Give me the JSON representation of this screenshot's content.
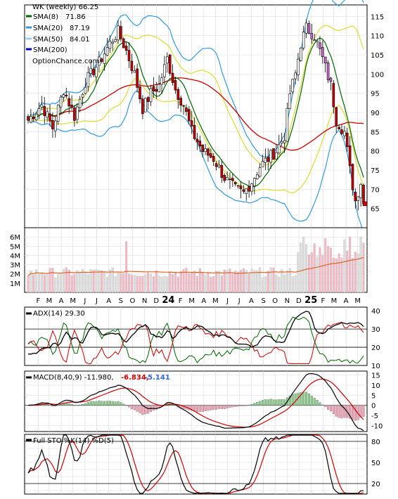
{
  "chart_data": [
    {
      "type": "candlestick",
      "title": "WK (weekly) 66.25",
      "watermark": "OptionChance.com",
      "legend_placement": "top-left",
      "ylim": [
        60,
        118
      ],
      "yticks": [
        65,
        70,
        75,
        80,
        85,
        90,
        95,
        100,
        105,
        110,
        115
      ],
      "x_start": "2023-01-06",
      "x_end": "2025-05-16",
      "month_labels": [
        {
          "date": "2023-02-01",
          "label": "F"
        },
        {
          "date": "2023-03-01",
          "label": "M"
        },
        {
          "date": "2023-04-01",
          "label": "A"
        },
        {
          "date": "2023-05-01",
          "label": "M"
        },
        {
          "date": "2023-06-01",
          "label": "J"
        },
        {
          "date": "2023-07-01",
          "label": "J"
        },
        {
          "date": "2023-08-01",
          "label": "A"
        },
        {
          "date": "2023-09-01",
          "label": "S"
        },
        {
          "date": "2023-10-01",
          "label": "O"
        },
        {
          "date": "2023-11-01",
          "label": "N"
        },
        {
          "date": "2023-12-01",
          "label": "D"
        },
        {
          "date": "2024-01-01",
          "label": "24",
          "bold": true
        },
        {
          "date": "2024-02-01",
          "label": "F"
        },
        {
          "date": "2024-03-01",
          "label": "M"
        },
        {
          "date": "2024-04-01",
          "label": "A"
        },
        {
          "date": "2024-05-01",
          "label": "M"
        },
        {
          "date": "2024-06-01",
          "label": "J"
        },
        {
          "date": "2024-07-01",
          "label": "J"
        },
        {
          "date": "2024-08-01",
          "label": "A"
        },
        {
          "date": "2024-09-01",
          "label": "S"
        },
        {
          "date": "2024-10-01",
          "label": "O"
        },
        {
          "date": "2024-11-01",
          "label": "N"
        },
        {
          "date": "2024-12-01",
          "label": "D"
        },
        {
          "date": "2025-01-01",
          "label": "25",
          "bold": true
        },
        {
          "date": "2025-02-01",
          "label": "F"
        },
        {
          "date": "2025-03-01",
          "label": "M"
        },
        {
          "date": "2025-04-01",
          "label": "A"
        },
        {
          "date": "2025-05-01",
          "label": "M"
        }
      ],
      "close_anchors": [
        {
          "date": "2023-01-06",
          "close": 88
        },
        {
          "date": "2023-02-10",
          "close": 92
        },
        {
          "date": "2023-03-10",
          "close": 86
        },
        {
          "date": "2023-04-07",
          "close": 96
        },
        {
          "date": "2023-05-05",
          "close": 89
        },
        {
          "date": "2023-06-02",
          "close": 98
        },
        {
          "date": "2023-07-07",
          "close": 103
        },
        {
          "date": "2023-08-04",
          "close": 108
        },
        {
          "date": "2023-08-25",
          "close": 111
        },
        {
          "date": "2023-09-15",
          "close": 106
        },
        {
          "date": "2023-10-06",
          "close": 100
        },
        {
          "date": "2023-10-27",
          "close": 91
        },
        {
          "date": "2023-11-17",
          "close": 95
        },
        {
          "date": "2023-12-08",
          "close": 97
        },
        {
          "date": "2023-12-29",
          "close": 104
        },
        {
          "date": "2024-01-19",
          "close": 96
        },
        {
          "date": "2024-02-09",
          "close": 92
        },
        {
          "date": "2024-03-01",
          "close": 85
        },
        {
          "date": "2024-03-29",
          "close": 80
        },
        {
          "date": "2024-04-26",
          "close": 78
        },
        {
          "date": "2024-05-24",
          "close": 73
        },
        {
          "date": "2024-06-21",
          "close": 70
        },
        {
          "date": "2024-07-12",
          "close": 69
        },
        {
          "date": "2024-08-02",
          "close": 72
        },
        {
          "date": "2024-08-23",
          "close": 76
        },
        {
          "date": "2024-09-13",
          "close": 78
        },
        {
          "date": "2024-10-04",
          "close": 80
        },
        {
          "date": "2024-10-25",
          "close": 84
        },
        {
          "date": "2024-11-08",
          "close": 95
        },
        {
          "date": "2024-11-22",
          "close": 100
        },
        {
          "date": "2024-12-06",
          "close": 108
        },
        {
          "date": "2024-12-20",
          "close": 112
        },
        {
          "date": "2025-01-10",
          "close": 110
        },
        {
          "date": "2025-01-31",
          "close": 104
        },
        {
          "date": "2025-02-21",
          "close": 97
        },
        {
          "date": "2025-03-07",
          "close": 88
        },
        {
          "date": "2025-03-28",
          "close": 85
        },
        {
          "date": "2025-04-11",
          "close": 75
        },
        {
          "date": "2025-04-25",
          "close": 67
        },
        {
          "date": "2025-05-09",
          "close": 72
        },
        {
          "date": "2025-05-16",
          "close": 66.25
        }
      ],
      "series": [
        {
          "name": "SMA(8)",
          "value": "71.86",
          "color": "#006600"
        },
        {
          "name": "SMA(20)",
          "value": "87.19",
          "color": "#3399dd"
        },
        {
          "name": "SMA(50)",
          "value": "84.01",
          "color": "#99ccff"
        },
        {
          "name": "SMA(200)",
          "value": "",
          "color": "#0000cc"
        }
      ],
      "bollinger_color": "#dddd33",
      "long_ma_color": "#cc0000"
    },
    {
      "type": "bar",
      "title": "Volume",
      "ylim": [
        0,
        7000000
      ],
      "yticks": [
        {
          "v": 1000000,
          "label": "1M"
        },
        {
          "v": 2000000,
          "label": "2M"
        },
        {
          "v": 3000000,
          "label": "3M"
        },
        {
          "v": 4000000,
          "label": "4M"
        },
        {
          "v": 5000000,
          "label": "5M"
        },
        {
          "v": 6000000,
          "label": "6M"
        }
      ],
      "avg_line_color": "#dd6622"
    },
    {
      "type": "line",
      "title": "ADX(14) 29.30",
      "ylim": [
        10,
        42
      ],
      "yticks": [
        10,
        20,
        30,
        40
      ],
      "ref_lines": [
        20,
        30
      ],
      "series": [
        {
          "name": "ADX",
          "color": "#000000"
        },
        {
          "name": "+DI",
          "color": "#006600"
        },
        {
          "name": "-DI",
          "color": "#cc0000"
        }
      ]
    },
    {
      "type": "line",
      "title": "MACD(8,40,9) -11.980,",
      "macd_value": "-6.834,",
      "signal_value": "-5.141",
      "ylim": [
        -13,
        17
      ],
      "yticks": [
        {
          "v": 15,
          "label": "15"
        },
        {
          "v": 10,
          "label": "10"
        },
        {
          "v": 5,
          "label": "5"
        },
        {
          "v": 0,
          "label": "0"
        },
        {
          "v": -5,
          "label": "-5"
        },
        {
          "v": -10,
          "label": "-10"
        }
      ],
      "series": [
        {
          "name": "MACD",
          "color": "#000000"
        },
        {
          "name": "Signal",
          "color": "#cc0000"
        },
        {
          "name": "Histogram",
          "color": "#66bb66"
        }
      ]
    },
    {
      "type": "line",
      "title": "Full STO %K(14) %D(5)",
      "ylim": [
        5,
        90
      ],
      "yticks": [
        20,
        50,
        80
      ],
      "ref_lines": [
        20,
        80
      ],
      "series": [
        {
          "name": "%K",
          "color": "#000000"
        },
        {
          "name": "%D",
          "color": "#cc0000"
        }
      ]
    }
  ]
}
